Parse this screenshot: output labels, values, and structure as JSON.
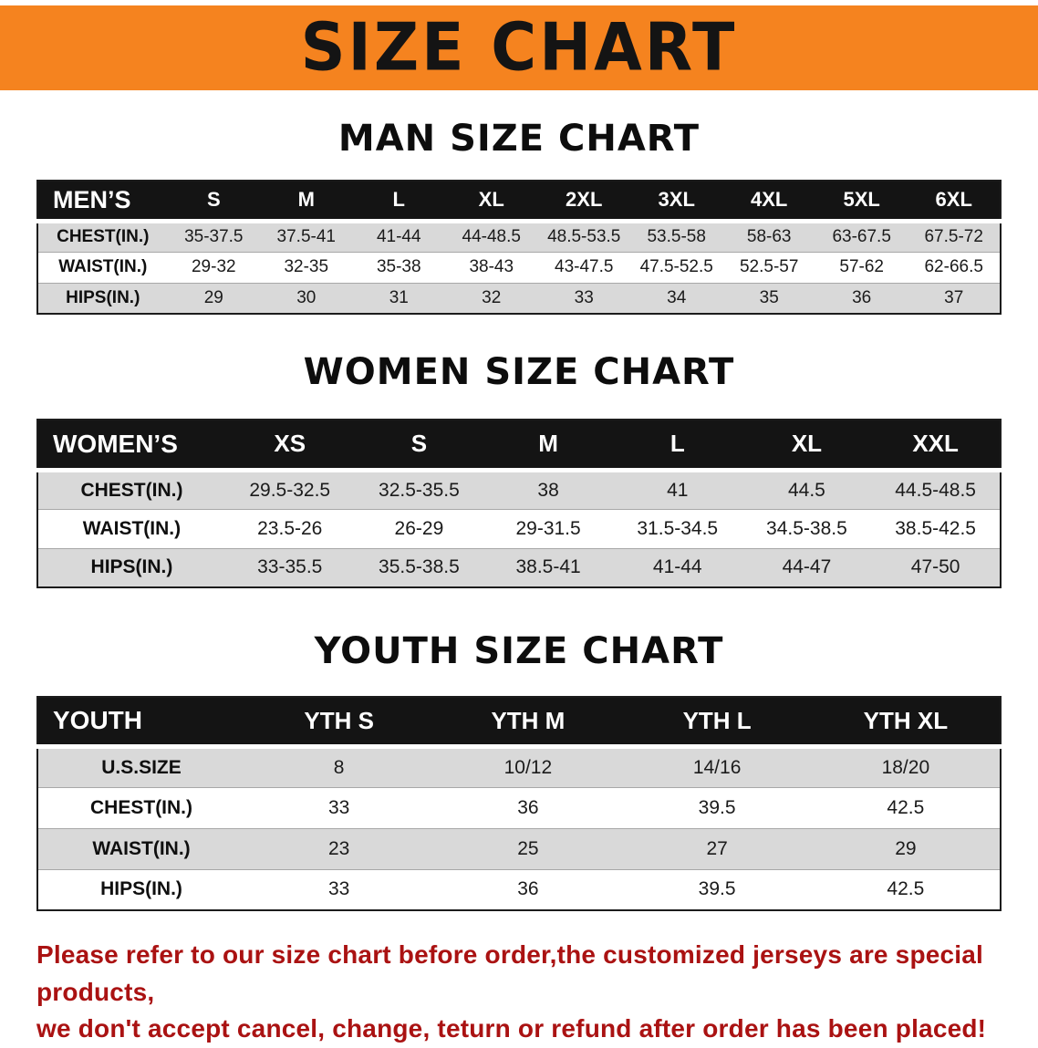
{
  "banner": {
    "title": "SIZE CHART"
  },
  "colors": {
    "banner_orange": "#f5831f",
    "header_black": "#141414",
    "row_gray": "#d9d9d9",
    "disclaimer_red": "#aa1212"
  },
  "sections": [
    {
      "id": "men",
      "heading": "MAN SIZE CHART",
      "table": {
        "header": [
          "MEN’S",
          "S",
          "M",
          "L",
          "XL",
          "2XL",
          "3XL",
          "4XL",
          "5XL",
          "6XL"
        ],
        "rows": [
          [
            "CHEST(IN.)",
            "35-37.5",
            "37.5-41",
            "41-44",
            "44-48.5",
            "48.5-53.5",
            "53.5-58",
            "58-63",
            "63-67.5",
            "67.5-72"
          ],
          [
            "WAIST(IN.)",
            "29-32",
            "32-35",
            "35-38",
            "38-43",
            "43-47.5",
            "47.5-52.5",
            "52.5-57",
            "57-62",
            "62-66.5"
          ],
          [
            "HIPS(IN.)",
            "29",
            "30",
            "31",
            "32",
            "33",
            "34",
            "35",
            "36",
            "37"
          ]
        ]
      }
    },
    {
      "id": "women",
      "heading": "WOMEN SIZE CHART",
      "table": {
        "header": [
          "WOMEN’S",
          "XS",
          "S",
          "M",
          "L",
          "XL",
          "XXL"
        ],
        "rows": [
          [
            "CHEST(IN.)",
            "29.5-32.5",
            "32.5-35.5",
            "38",
            "41",
            "44.5",
            "44.5-48.5"
          ],
          [
            "WAIST(IN.)",
            "23.5-26",
            "26-29",
            "29-31.5",
            "31.5-34.5",
            "34.5-38.5",
            "38.5-42.5"
          ],
          [
            "HIPS(IN.)",
            "33-35.5",
            "35.5-38.5",
            "38.5-41",
            "41-44",
            "44-47",
            "47-50"
          ]
        ]
      }
    },
    {
      "id": "youth",
      "heading": "YOUTH SIZE CHART",
      "table": {
        "header": [
          "YOUTH",
          "YTH S",
          "YTH M",
          "YTH L",
          "YTH XL"
        ],
        "rows": [
          [
            "U.S.SIZE",
            "8",
            "10/12",
            "14/16",
            "18/20"
          ],
          [
            "CHEST(IN.)",
            "33",
            "36",
            "39.5",
            "42.5"
          ],
          [
            "WAIST(IN.)",
            "23",
            "25",
            "27",
            "29"
          ],
          [
            "HIPS(IN.)",
            "33",
            "36",
            "39.5",
            "42.5"
          ]
        ]
      }
    }
  ],
  "disclaimer": {
    "line1": "Please refer to our size chart before order,the customized jerseys are special products,",
    "line2": "we don't accept cancel, change, teturn or refund after order has been placed!"
  }
}
